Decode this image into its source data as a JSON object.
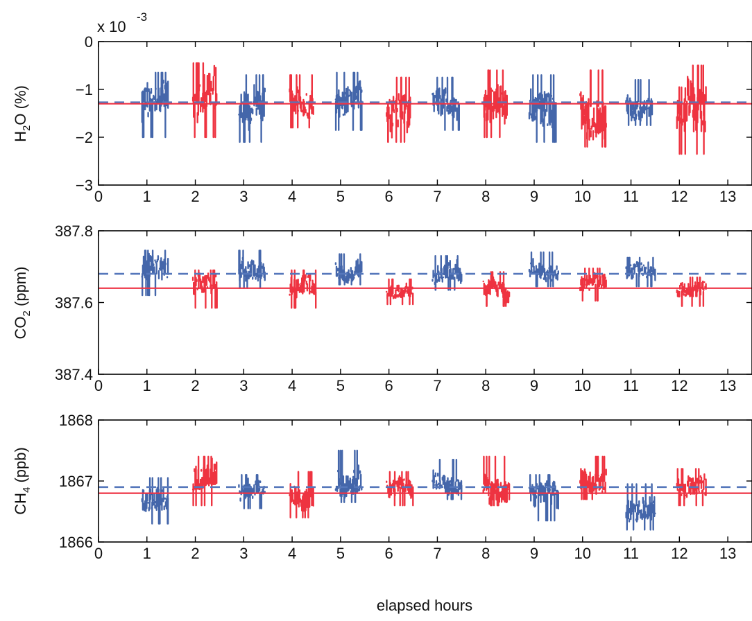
{
  "figure": {
    "xlabel": "elapsed hours"
  },
  "colors": {
    "blue": "#4466aa",
    "red": "#ee3340",
    "blue_mean_line": "#5577bb",
    "red_mean_line": "#ee3344",
    "axis": "#000000"
  },
  "chart_data": [
    {
      "type": "scatter",
      "panel": "h2o",
      "ylabel_main": "H",
      "ylabel_sub": "2",
      "ylabel_rest": "O (%)",
      "exponent_base": "x 10",
      "exponent_power": "-3",
      "xlim": [
        0,
        13.5
      ],
      "ylim": [
        -3,
        0
      ],
      "xticks": [
        0,
        1,
        2,
        3,
        4,
        5,
        6,
        7,
        8,
        9,
        10,
        11,
        12,
        13
      ],
      "yticks": [
        0,
        -1,
        -2,
        -3
      ],
      "ytick_labels": [
        "0",
        "−1",
        "−2",
        "−3"
      ],
      "reference_lines": {
        "blue_dashed": -1.27,
        "red_solid": -1.3
      },
      "segments": [
        {
          "start": 0.9,
          "end": 1.45,
          "color": "blue",
          "center": -1.3,
          "low": -2.0,
          "high": -0.65
        },
        {
          "start": 1.95,
          "end": 2.45,
          "color": "red",
          "center": -1.3,
          "low": -2.0,
          "high": -0.45
        },
        {
          "start": 2.9,
          "end": 3.45,
          "color": "blue",
          "center": -1.35,
          "low": -2.1,
          "high": -0.7
        },
        {
          "start": 3.95,
          "end": 4.45,
          "color": "red",
          "center": -1.25,
          "low": -1.8,
          "high": -0.7
        },
        {
          "start": 4.9,
          "end": 5.45,
          "color": "blue",
          "center": -1.25,
          "low": -1.85,
          "high": -0.65
        },
        {
          "start": 5.95,
          "end": 6.45,
          "color": "red",
          "center": -1.3,
          "low": -2.1,
          "high": -0.75
        },
        {
          "start": 6.9,
          "end": 7.45,
          "color": "blue",
          "center": -1.3,
          "low": -1.85,
          "high": -0.75
        },
        {
          "start": 7.95,
          "end": 8.45,
          "color": "red",
          "center": -1.3,
          "low": -2.0,
          "high": -0.6
        },
        {
          "start": 8.9,
          "end": 9.45,
          "color": "blue",
          "center": -1.28,
          "low": -2.1,
          "high": -0.7
        },
        {
          "start": 9.95,
          "end": 10.5,
          "color": "red",
          "center": -1.35,
          "low": -2.2,
          "high": -0.6
        },
        {
          "start": 10.9,
          "end": 11.45,
          "color": "blue",
          "center": -1.25,
          "low": -1.75,
          "high": -0.8
        },
        {
          "start": 11.95,
          "end": 12.55,
          "color": "red",
          "center": -1.3,
          "low": -2.35,
          "high": -0.5
        }
      ]
    },
    {
      "type": "scatter",
      "panel": "co2",
      "ylabel_main": "CO",
      "ylabel_sub": "2",
      "ylabel_rest": " (ppm)",
      "xlim": [
        0,
        13.5
      ],
      "ylim": [
        387.4,
        387.8
      ],
      "xticks": [
        0,
        1,
        2,
        3,
        4,
        5,
        6,
        7,
        8,
        9,
        10,
        11,
        12,
        13
      ],
      "yticks": [
        387.8,
        387.6,
        387.4
      ],
      "ytick_labels": [
        "387.8",
        "387.6",
        "387.4"
      ],
      "reference_lines": {
        "blue_dashed": 387.68,
        "red_solid": 387.64
      },
      "segments": [
        {
          "start": 0.9,
          "end": 1.45,
          "color": "blue",
          "center": 387.68,
          "low": 387.62,
          "high": 387.745
        },
        {
          "start": 1.95,
          "end": 2.45,
          "color": "red",
          "center": 387.64,
          "low": 387.585,
          "high": 387.69
        },
        {
          "start": 2.9,
          "end": 3.45,
          "color": "blue",
          "center": 387.68,
          "low": 387.64,
          "high": 387.745
        },
        {
          "start": 3.95,
          "end": 4.5,
          "color": "red",
          "center": 387.63,
          "low": 387.585,
          "high": 387.69
        },
        {
          "start": 4.9,
          "end": 5.45,
          "color": "blue",
          "center": 387.685,
          "low": 387.65,
          "high": 387.735
        },
        {
          "start": 5.95,
          "end": 6.5,
          "color": "red",
          "center": 387.625,
          "low": 387.595,
          "high": 387.665
        },
        {
          "start": 6.9,
          "end": 7.5,
          "color": "blue",
          "center": 387.67,
          "low": 387.635,
          "high": 387.73
        },
        {
          "start": 7.95,
          "end": 8.5,
          "color": "red",
          "center": 387.64,
          "low": 387.59,
          "high": 387.685
        },
        {
          "start": 8.9,
          "end": 9.5,
          "color": "blue",
          "center": 387.685,
          "low": 387.645,
          "high": 387.74
        },
        {
          "start": 9.95,
          "end": 10.5,
          "color": "red",
          "center": 387.65,
          "low": 387.605,
          "high": 387.695
        },
        {
          "start": 10.9,
          "end": 11.5,
          "color": "blue",
          "center": 387.68,
          "low": 387.645,
          "high": 387.725
        },
        {
          "start": 11.95,
          "end": 12.55,
          "color": "red",
          "center": 387.63,
          "low": 387.59,
          "high": 387.67
        }
      ]
    },
    {
      "type": "scatter",
      "panel": "ch4",
      "ylabel_main": "CH",
      "ylabel_sub": "4",
      "ylabel_rest": " (ppb)",
      "xlim": [
        0,
        13.5
      ],
      "ylim": [
        1866,
        1868
      ],
      "xticks": [
        0,
        1,
        2,
        3,
        4,
        5,
        6,
        7,
        8,
        9,
        10,
        11,
        12,
        13
      ],
      "yticks": [
        1868,
        1867,
        1866
      ],
      "ytick_labels": [
        "1868",
        "1867",
        "1866"
      ],
      "reference_lines": {
        "blue_dashed": 1866.9,
        "red_solid": 1866.8
      },
      "segments": [
        {
          "start": 0.9,
          "end": 1.45,
          "color": "blue",
          "center": 1866.65,
          "low": 1866.3,
          "high": 1867.05
        },
        {
          "start": 1.95,
          "end": 2.45,
          "color": "red",
          "center": 1866.95,
          "low": 1866.6,
          "high": 1867.4
        },
        {
          "start": 2.9,
          "end": 3.45,
          "color": "blue",
          "center": 1866.8,
          "low": 1866.55,
          "high": 1867.1
        },
        {
          "start": 3.95,
          "end": 4.45,
          "color": "red",
          "center": 1866.75,
          "low": 1866.4,
          "high": 1867.15
        },
        {
          "start": 4.9,
          "end": 5.45,
          "color": "blue",
          "center": 1866.95,
          "low": 1866.65,
          "high": 1867.5
        },
        {
          "start": 5.95,
          "end": 6.5,
          "color": "red",
          "center": 1866.9,
          "low": 1866.6,
          "high": 1867.15
        },
        {
          "start": 6.9,
          "end": 7.5,
          "color": "blue",
          "center": 1867.0,
          "low": 1866.7,
          "high": 1867.35
        },
        {
          "start": 7.95,
          "end": 8.5,
          "color": "red",
          "center": 1866.95,
          "low": 1866.6,
          "high": 1867.4
        },
        {
          "start": 8.9,
          "end": 9.5,
          "color": "blue",
          "center": 1866.8,
          "low": 1866.35,
          "high": 1867.1
        },
        {
          "start": 9.95,
          "end": 10.5,
          "color": "red",
          "center": 1867.0,
          "low": 1866.7,
          "high": 1867.4
        },
        {
          "start": 10.9,
          "end": 11.5,
          "color": "blue",
          "center": 1866.6,
          "low": 1866.2,
          "high": 1866.95
        },
        {
          "start": 11.95,
          "end": 12.55,
          "color": "red",
          "center": 1866.85,
          "low": 1866.6,
          "high": 1867.2
        }
      ]
    }
  ]
}
